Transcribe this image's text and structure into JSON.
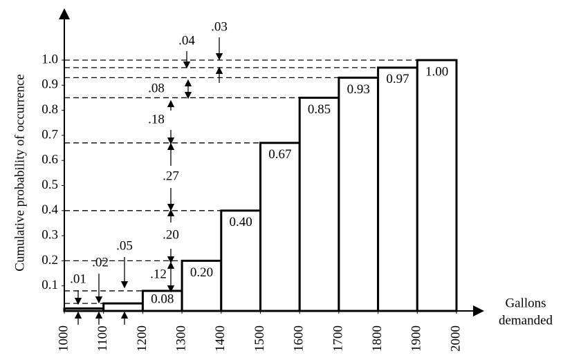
{
  "chart_data": {
    "type": "histogram",
    "y_label": "Cumulative probability of occurrence",
    "x_label": [
      "Gallons",
      "demanded"
    ],
    "bins": [
      1000,
      1100,
      1200,
      1300,
      1400,
      1500,
      1600,
      1700,
      1800,
      1900,
      2000
    ],
    "values": [
      0.01,
      0.03,
      0.08,
      0.2,
      0.4,
      0.67,
      0.85,
      0.93,
      0.97,
      1.0
    ],
    "value_labels": [
      null,
      null,
      "0.08",
      "0.20",
      "0.40",
      "0.67",
      "0.85",
      "0.93",
      "0.97",
      "1.00"
    ],
    "xlim": [
      1000,
      2000
    ],
    "xticks": [
      1000,
      1100,
      1200,
      1300,
      1400,
      1500,
      1600,
      1700,
      1800,
      1900,
      2000
    ],
    "ylim": [
      0,
      1.0
    ],
    "yticks": [
      0.1,
      0.2,
      0.3,
      0.4,
      0.5,
      0.6,
      0.7,
      0.8,
      0.9,
      {
        "value": 1.0,
        "label": "1.0"
      }
    ],
    "color": "#ffffff",
    "edgecolor": "#000000",
    "annotations": [
      ".01",
      ".02",
      ".05",
      ".12",
      ".20",
      ".27",
      ".18",
      ".08",
      ".04",
      ".03"
    ]
  }
}
